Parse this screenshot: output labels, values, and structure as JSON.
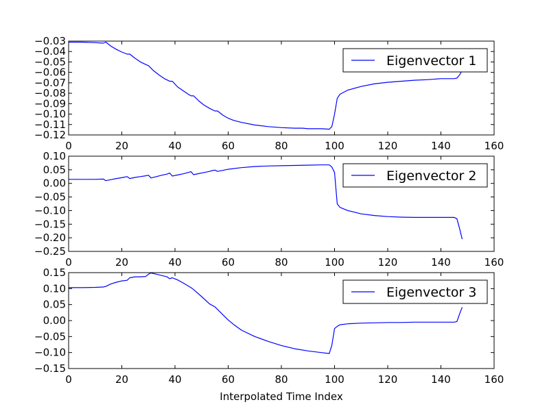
{
  "figure": {
    "line_color": "#0000ff",
    "frame_color": "#000000",
    "background": "#ffffff"
  },
  "chart_data": [
    {
      "type": "line",
      "xlabel": "",
      "ylabel": "",
      "xlim": [
        0,
        160
      ],
      "ylim": [
        -0.12,
        -0.03
      ],
      "xticks": [
        0,
        20,
        40,
        60,
        80,
        100,
        120,
        140,
        160
      ],
      "xtick_labels": [
        "0",
        "20",
        "40",
        "60",
        "80",
        "100",
        "120",
        "140",
        "160"
      ],
      "yticks": [
        -0.12,
        -0.11,
        -0.1,
        -0.09,
        -0.08,
        -0.07,
        -0.06,
        -0.05,
        -0.04,
        -0.03
      ],
      "ytick_labels": [
        "−0.12",
        "−0.11",
        "−0.10",
        "−0.09",
        "−0.08",
        "−0.07",
        "−0.06",
        "−0.05",
        "−0.04",
        "−0.03"
      ],
      "grid": false,
      "legend_position": "top-right",
      "series": [
        {
          "name": "Eigenvector 1",
          "x": [
            0,
            5,
            10,
            13,
            14,
            16,
            18,
            20,
            22,
            23,
            25,
            27,
            29,
            30,
            32,
            34,
            36,
            38,
            39,
            41,
            43,
            45,
            46,
            47,
            49,
            51,
            53,
            55,
            56,
            58,
            60,
            62,
            65,
            70,
            75,
            80,
            85,
            88,
            90,
            95,
            98,
            99,
            100,
            101,
            102,
            105,
            110,
            115,
            120,
            125,
            130,
            135,
            140,
            145,
            146,
            147,
            148
          ],
          "values": [
            -0.031,
            -0.031,
            -0.0315,
            -0.032,
            -0.031,
            -0.035,
            -0.038,
            -0.0405,
            -0.0425,
            -0.0425,
            -0.0465,
            -0.05,
            -0.0525,
            -0.0535,
            -0.0585,
            -0.0625,
            -0.066,
            -0.0685,
            -0.0685,
            -0.074,
            -0.0775,
            -0.081,
            -0.0825,
            -0.0825,
            -0.0875,
            -0.0915,
            -0.0945,
            -0.097,
            -0.097,
            -0.101,
            -0.104,
            -0.106,
            -0.108,
            -0.1105,
            -0.112,
            -0.113,
            -0.1135,
            -0.1135,
            -0.114,
            -0.114,
            -0.1145,
            -0.112,
            -0.1,
            -0.085,
            -0.081,
            -0.077,
            -0.0735,
            -0.071,
            -0.0695,
            -0.0685,
            -0.0675,
            -0.067,
            -0.066,
            -0.066,
            -0.0655,
            -0.0625,
            -0.058
          ]
        }
      ]
    },
    {
      "type": "line",
      "xlabel": "",
      "ylabel": "",
      "xlim": [
        0,
        160
      ],
      "ylim": [
        -0.25,
        0.1
      ],
      "xticks": [
        0,
        20,
        40,
        60,
        80,
        100,
        120,
        140,
        160
      ],
      "xtick_labels": [
        "0",
        "20",
        "40",
        "60",
        "80",
        "100",
        "120",
        "140",
        "160"
      ],
      "yticks": [
        -0.25,
        -0.2,
        -0.15,
        -0.1,
        -0.05,
        0.0,
        0.05,
        0.1
      ],
      "ytick_labels": [
        "−0.25",
        "−0.20",
        "−0.15",
        "−0.10",
        "−0.05",
        "0.00",
        "0.05",
        "0.10"
      ],
      "grid": false,
      "legend_position": "top-right",
      "series": [
        {
          "name": "Eigenvector 2",
          "x": [
            0,
            5,
            10,
            13,
            14,
            16,
            18,
            20,
            22,
            23,
            25,
            27,
            29,
            30,
            31,
            33,
            35,
            37,
            38,
            39,
            41,
            43,
            45,
            46,
            47,
            49,
            51,
            53,
            54,
            55,
            56,
            58,
            60,
            65,
            70,
            75,
            80,
            85,
            90,
            95,
            98,
            99,
            100,
            101,
            102,
            105,
            110,
            115,
            120,
            125,
            130,
            135,
            140,
            145,
            146,
            147,
            148
          ],
          "values": [
            0.015,
            0.015,
            0.015,
            0.016,
            0.01,
            0.014,
            0.018,
            0.021,
            0.025,
            0.018,
            0.022,
            0.025,
            0.028,
            0.03,
            0.02,
            0.025,
            0.03,
            0.034,
            0.038,
            0.027,
            0.031,
            0.035,
            0.04,
            0.043,
            0.032,
            0.036,
            0.04,
            0.044,
            0.047,
            0.049,
            0.044,
            0.048,
            0.052,
            0.058,
            0.062,
            0.064,
            0.065,
            0.066,
            0.067,
            0.068,
            0.068,
            0.06,
            0.04,
            -0.075,
            -0.088,
            -0.1,
            -0.112,
            -0.118,
            -0.122,
            -0.124,
            -0.125,
            -0.125,
            -0.125,
            -0.125,
            -0.13,
            -0.165,
            -0.205
          ]
        }
      ]
    },
    {
      "type": "line",
      "xlabel": "Interpolated Time Index",
      "ylabel": "",
      "xlim": [
        0,
        160
      ],
      "ylim": [
        -0.15,
        0.15
      ],
      "xticks": [
        0,
        20,
        40,
        60,
        80,
        100,
        120,
        140,
        160
      ],
      "xtick_labels": [
        "0",
        "20",
        "40",
        "60",
        "80",
        "100",
        "120",
        "140",
        "160"
      ],
      "yticks": [
        -0.15,
        -0.1,
        -0.05,
        0.0,
        0.05,
        0.1,
        0.15
      ],
      "ytick_labels": [
        "−0.15",
        "−0.10",
        "−0.05",
        "0.00",
        "0.05",
        "0.10",
        "0.15"
      ],
      "grid": false,
      "legend_position": "top-right",
      "series": [
        {
          "name": "Eigenvector 3",
          "x": [
            0,
            5,
            10,
            13,
            14,
            16,
            18,
            20,
            22,
            23,
            25,
            27,
            29,
            30,
            31,
            33,
            35,
            37,
            38,
            39,
            41,
            43,
            45,
            46,
            47,
            50,
            53,
            55,
            56,
            58,
            60,
            62,
            65,
            70,
            75,
            80,
            85,
            90,
            95,
            98,
            99,
            100,
            101,
            102,
            105,
            110,
            115,
            120,
            125,
            130,
            135,
            140,
            145,
            146,
            147,
            148
          ],
          "values": [
            0.103,
            0.103,
            0.104,
            0.105,
            0.107,
            0.115,
            0.12,
            0.124,
            0.126,
            0.134,
            0.137,
            0.137,
            0.138,
            0.145,
            0.149,
            0.145,
            0.141,
            0.137,
            0.131,
            0.134,
            0.127,
            0.118,
            0.108,
            0.103,
            0.097,
            0.075,
            0.052,
            0.043,
            0.035,
            0.018,
            0.002,
            -0.012,
            -0.03,
            -0.05,
            -0.065,
            -0.078,
            -0.088,
            -0.095,
            -0.1,
            -0.103,
            -0.077,
            -0.025,
            -0.018,
            -0.013,
            -0.01,
            -0.008,
            -0.007,
            -0.006,
            -0.006,
            -0.005,
            -0.005,
            -0.005,
            -0.005,
            -0.003,
            0.02,
            0.042
          ]
        }
      ]
    }
  ]
}
